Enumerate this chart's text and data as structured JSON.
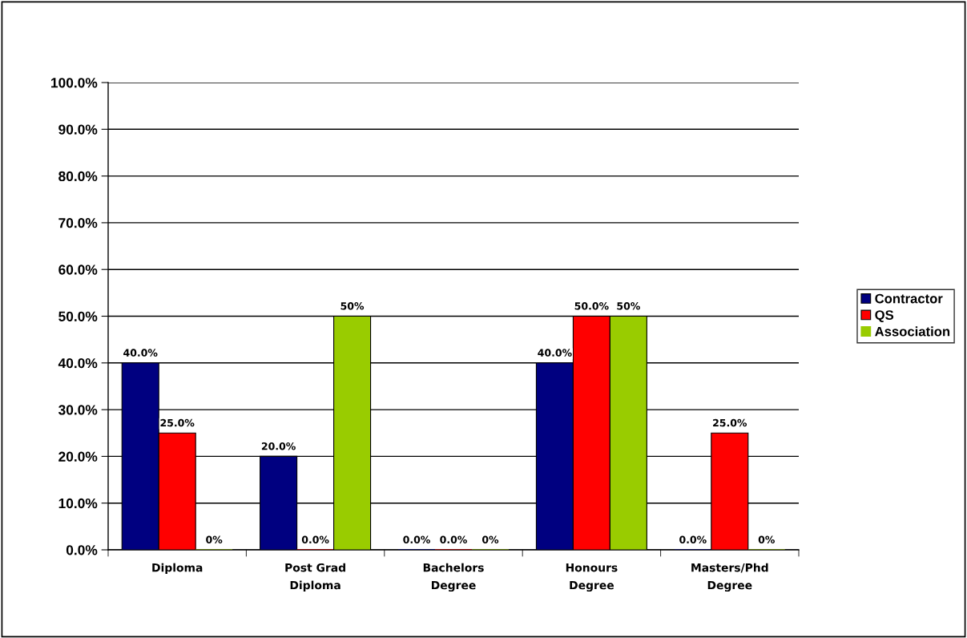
{
  "chart_data": {
    "type": "bar",
    "categories": [
      "Diploma",
      "Post Grad\nDiploma",
      "Bachelors\nDegree",
      "Honours\nDegree",
      "Masters/Phd\nDegree"
    ],
    "series": [
      {
        "name": "Contractor",
        "color": "#000080",
        "values": [
          40,
          20,
          0,
          40,
          0
        ],
        "value_labels": [
          "40.0%",
          "20.0%",
          "0.0%",
          "40.0%",
          "0.0%"
        ]
      },
      {
        "name": "QS",
        "color": "#ff0000",
        "values": [
          25,
          0,
          0,
          50,
          25
        ],
        "value_labels": [
          "25.0%",
          "0.0%",
          "0.0%",
          "50.0%",
          "25.0%"
        ]
      },
      {
        "name": "Association",
        "color": "#99cc00",
        "values": [
          0,
          50,
          0,
          50,
          0
        ],
        "value_labels": [
          "0%",
          "50%",
          "0%",
          "50%",
          "0%"
        ]
      }
    ],
    "ylim": [
      0,
      100
    ],
    "yticks": [
      {
        "value": 0,
        "label": "0.0%"
      },
      {
        "value": 10,
        "label": "10.0%"
      },
      {
        "value": 20,
        "label": "20.0%"
      },
      {
        "value": 30,
        "label": "30.0%"
      },
      {
        "value": 40,
        "label": "40.0%"
      },
      {
        "value": 50,
        "label": "50.0%"
      },
      {
        "value": 60,
        "label": "60.0%"
      },
      {
        "value": 70,
        "label": "70.0%"
      },
      {
        "value": 80,
        "label": "80.0%"
      },
      {
        "value": 90,
        "label": "90.0%"
      },
      {
        "value": 100,
        "label": "100.0%"
      }
    ],
    "grid": "y",
    "legend": "right"
  }
}
